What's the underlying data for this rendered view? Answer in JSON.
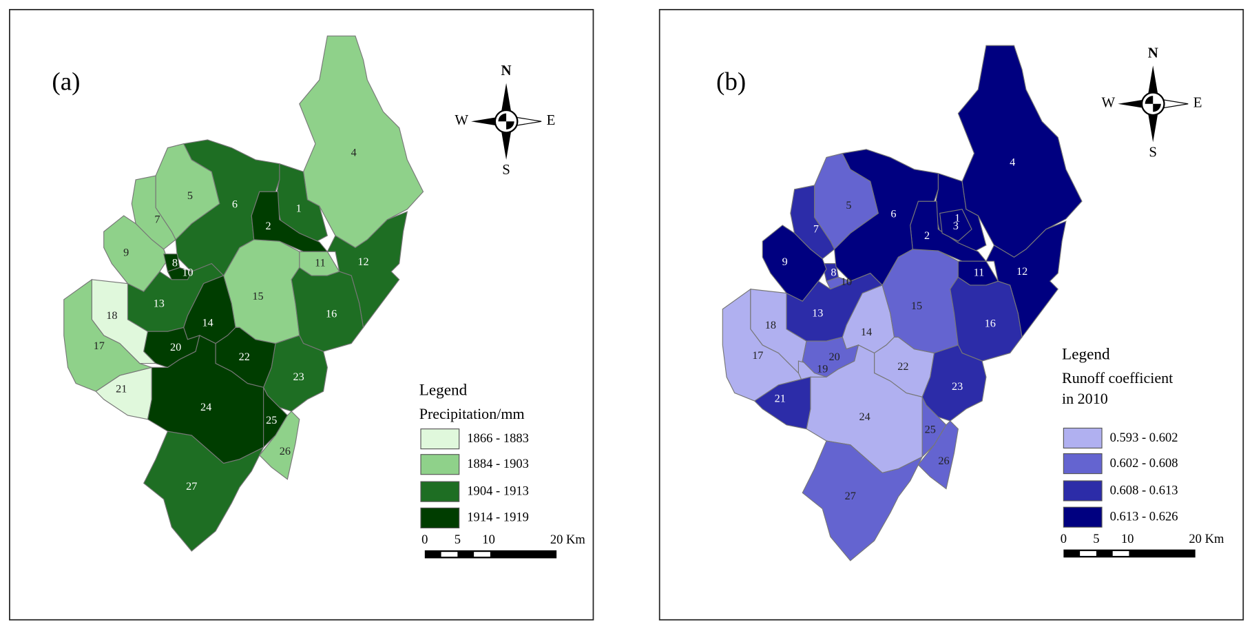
{
  "panels": [
    {
      "label": "(a)",
      "compass": {
        "n": "N",
        "s": "S",
        "w": "W",
        "e": "E"
      },
      "legend": {
        "title": "Legend",
        "subtitle": [
          "Precipitation/mm"
        ],
        "classes": [
          {
            "label": "1866 - 1883",
            "color": "#e0f8dc",
            "basins": [
              "18",
              "21"
            ]
          },
          {
            "label": "1884 - 1903",
            "color": "#8fd18a",
            "basins": [
              "4",
              "5",
              "7",
              "9",
              "11",
              "15",
              "17",
              "26"
            ]
          },
          {
            "label": "1904 - 1913",
            "color": "#1e6e23",
            "basins": [
              "1",
              "6",
              "12",
              "13",
              "16",
              "23",
              "27"
            ]
          },
          {
            "label": "1914 - 1919",
            "color": "#003d00",
            "basins": [
              "2",
              "8",
              "10",
              "14",
              "20",
              "22",
              "24",
              "25"
            ]
          }
        ]
      },
      "scale": {
        "ticks": [
          "0",
          "5",
          "10",
          "20"
        ],
        "unit": "Km"
      }
    },
    {
      "label": "(b)",
      "compass": {
        "n": "N",
        "s": "S",
        "w": "W",
        "e": "E"
      },
      "legend": {
        "title": "Legend",
        "subtitle": [
          "Runoff coefficient",
          "in 2010"
        ],
        "classes": [
          {
            "label": "0.593 - 0.602",
            "color": "#b0b0f0",
            "basins": [
              "14",
              "17",
              "18",
              "19",
              "22",
              "24"
            ]
          },
          {
            "label": "0.602 - 0.608",
            "color": "#6464d0",
            "basins": [
              "5",
              "10",
              "15",
              "20",
              "25",
              "26",
              "27"
            ]
          },
          {
            "label": "0.608 - 0.613",
            "color": "#2c2ca8",
            "basins": [
              "7",
              "8",
              "13",
              "16",
              "21",
              "23"
            ]
          },
          {
            "label": "0.613 - 0.626",
            "color": "#000080",
            "basins": [
              "1",
              "2",
              "3",
              "4",
              "6",
              "9",
              "11",
              "12"
            ]
          }
        ]
      },
      "scale": {
        "ticks": [
          "0",
          "5",
          "10",
          "20"
        ],
        "unit": "Km"
      }
    }
  ]
}
